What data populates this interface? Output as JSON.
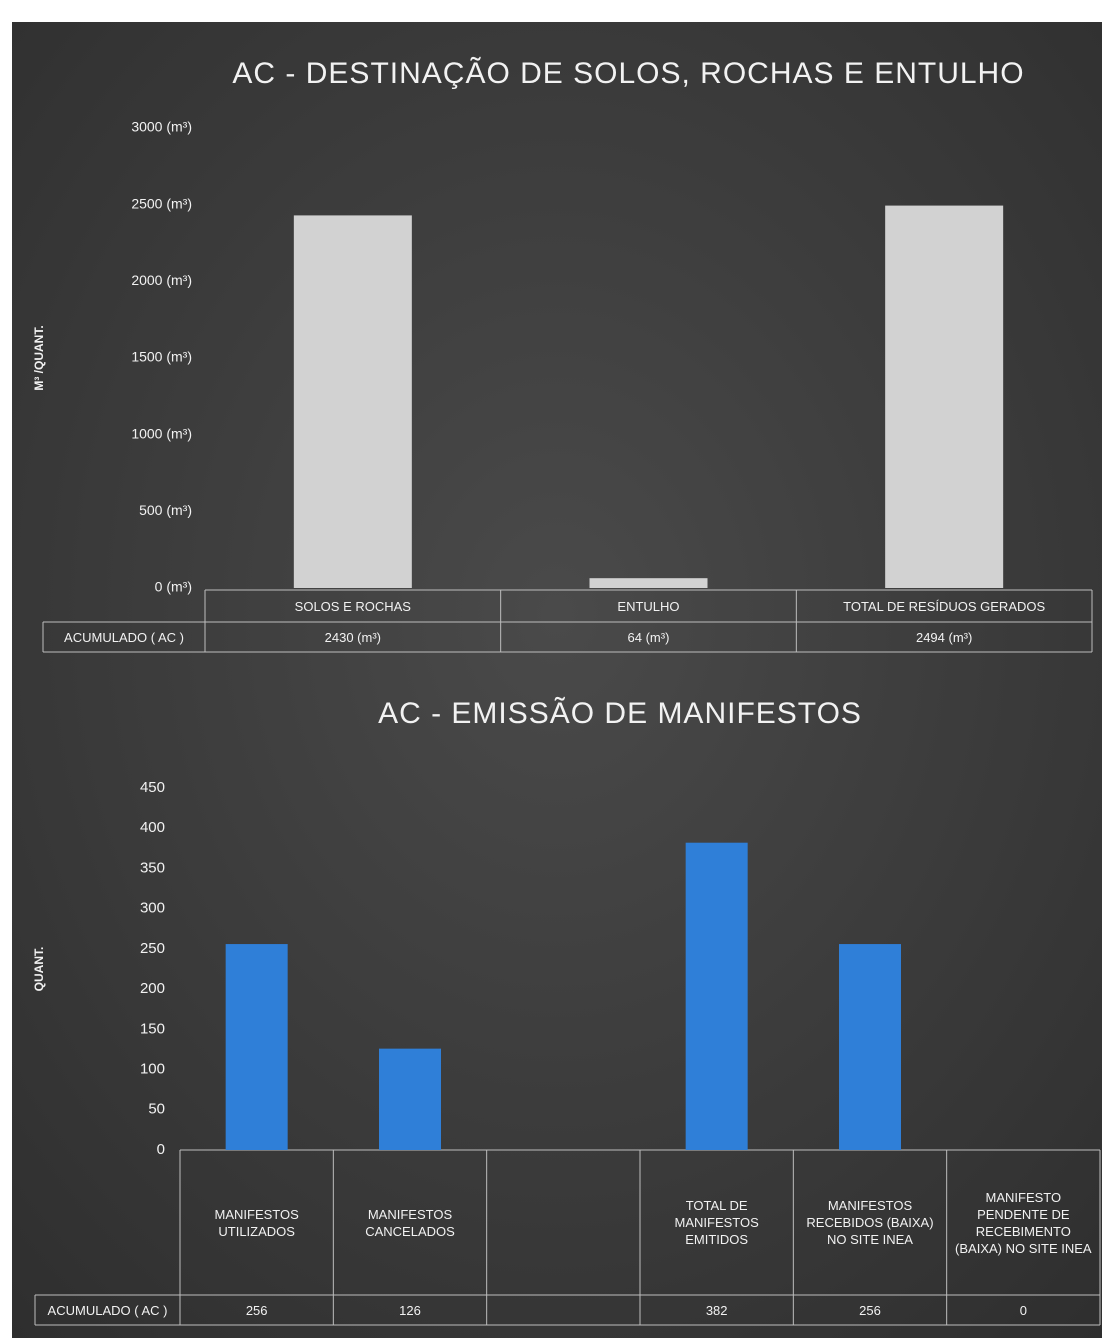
{
  "chart_data": [
    {
      "type": "bar",
      "title": "AC - DESTINAÇÃO DE SOLOS, ROCHAS E ENTULHO",
      "ylabel": "M³ /QUANT.",
      "row_label": "ACUMULADO ( AC )",
      "categories": [
        "SOLOS E ROCHAS",
        "ENTULHO",
        "TOTAL DE RESÍDUOS GERADOS"
      ],
      "values": [
        2430,
        64,
        2494
      ],
      "value_labels": [
        "2430 (m³)",
        "64 (m³)",
        "2494 (m³)"
      ],
      "color": "#d2d2d2",
      "ylim": [
        0,
        3000
      ],
      "yticks": [
        {
          "value": 0,
          "label": "0 (m³)"
        },
        {
          "value": 500,
          "label": "500 (m³)"
        },
        {
          "value": 1000,
          "label": "1000 (m³)"
        },
        {
          "value": 1500,
          "label": "1500 (m³)"
        },
        {
          "value": 2000,
          "label": "2000 (m³)"
        },
        {
          "value": 2500,
          "label": "2500 (m³)"
        },
        {
          "value": 3000,
          "label": "3000 (m³)"
        }
      ],
      "grid": false
    },
    {
      "type": "bar",
      "title": "AC - EMISSÃO DE MANIFESTOS",
      "ylabel": "QUANT.",
      "row_label": "ACUMULADO ( AC )",
      "categories": [
        "MANIFESTOS UTILIZADOS",
        "MANIFESTOS CANCELADOS",
        null,
        "TOTAL DE MANIFESTOS EMITIDOS",
        "MANIFESTOS RECEBIDOS (BAIXA) NO SITE INEA",
        "MANIFESTO PENDENTE DE RECEBIMENTO (BAIXA) NO SITE INEA"
      ],
      "values": [
        256,
        126,
        null,
        382,
        256,
        0
      ],
      "color": "#2f7fd8",
      "ylim": [
        0,
        450
      ],
      "yticks": [
        0,
        50,
        100,
        150,
        200,
        250,
        300,
        350,
        400,
        450
      ],
      "grid": false
    }
  ]
}
